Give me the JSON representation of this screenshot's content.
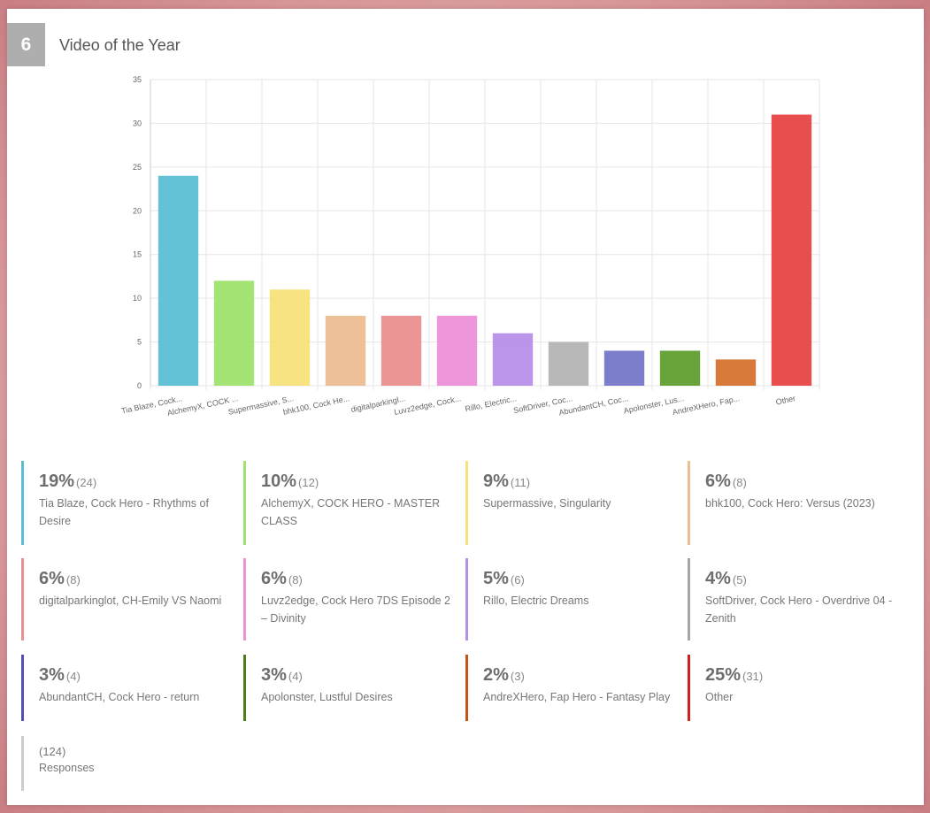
{
  "question": {
    "number": "6",
    "title": "Video of the Year"
  },
  "chart_data": {
    "type": "bar",
    "categories": [
      "Tia Blaze, Cock...",
      "AlchemyX, COCK ...",
      "Supermassive, S...",
      "bhk100, Cock He...",
      "digitalparkingl...",
      "Luvz2edge, Cock...",
      "Rillo, Electric...",
      "SoftDriver, Coc...",
      "AbundantCH, Coc...",
      "Apolonster, Lus...",
      "AndreXHero, Fap...",
      "Other"
    ],
    "values": [
      24,
      12,
      11,
      8,
      8,
      8,
      6,
      5,
      4,
      4,
      3,
      31
    ],
    "colors": [
      "#5bbfd4",
      "#9fe36e",
      "#f7e27a",
      "#ecbd91",
      "#ea8f8f",
      "#ec90d8",
      "#b68fe8",
      "#b4b4b4",
      "#7576c8",
      "#609e31",
      "#d6742f",
      "#e74444"
    ],
    "ylim": [
      0,
      35
    ],
    "yticks": [
      0,
      5,
      10,
      15,
      20,
      25,
      30,
      35
    ],
    "grid": true,
    "xlabel": "",
    "ylabel": ""
  },
  "legend": [
    {
      "pct": "19%",
      "count": "(24)",
      "label": "Tia Blaze, Cock Hero - Rhythms of Desire",
      "color": "#5bbfd4"
    },
    {
      "pct": "10%",
      "count": "(12)",
      "label": "AlchemyX, COCK HERO - MASTER CLASS",
      "color": "#9fe36e"
    },
    {
      "pct": "9%",
      "count": "(11)",
      "label": "Supermassive, Singularity",
      "color": "#f7e27a"
    },
    {
      "pct": "6%",
      "count": "(8)",
      "label": "bhk100, Cock Hero: Versus (2023)",
      "color": "#ecbd91"
    },
    {
      "pct": "6%",
      "count": "(8)",
      "label": "digitalparkinglot, CH-Emily VS Naomi",
      "color": "#ea8f8f"
    },
    {
      "pct": "6%",
      "count": "(8)",
      "label": "Luvz2edge, Cock Hero 7DS Episode 2 – Divinity",
      "color": "#ec90d8"
    },
    {
      "pct": "5%",
      "count": "(6)",
      "label": "Rillo, Electric Dreams",
      "color": "#b68fe8"
    },
    {
      "pct": "4%",
      "count": "(5)",
      "label": "SoftDriver, Cock Hero - Overdrive 04 - Zenith",
      "color": "#a5a5a5"
    },
    {
      "pct": "3%",
      "count": "(4)",
      "label": "AbundantCH, Cock Hero - return",
      "color": "#4f4fb8"
    },
    {
      "pct": "3%",
      "count": "(4)",
      "label": "Apolonster, Lustful Desires",
      "color": "#4a7f1c"
    },
    {
      "pct": "2%",
      "count": "(3)",
      "label": "AndreXHero, Fap Hero - Fantasy Play",
      "color": "#c8530f"
    },
    {
      "pct": "25%",
      "count": "(31)",
      "label": "Other",
      "color": "#d11f1f"
    }
  ],
  "responses": {
    "count": "(124)",
    "label": "Responses",
    "color": "#cccccc"
  }
}
